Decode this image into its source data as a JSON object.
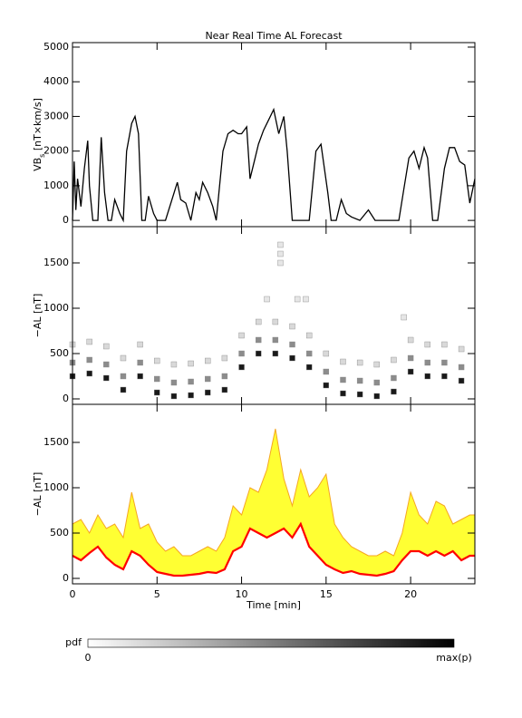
{
  "title": "Near Real Time AL Forecast",
  "chart_data": [
    {
      "type": "line",
      "ylabel": [
        "VB",
        "s",
        " [nT×km/s]"
      ],
      "x": [
        0,
        0.1,
        0.2,
        0.3,
        0.5,
        0.7,
        0.9,
        1.0,
        1.2,
        1.5,
        1.7,
        1.9,
        2.1,
        2.3,
        2.5,
        2.8,
        3.0,
        3.2,
        3.5,
        3.7,
        3.9,
        4.1,
        4.3,
        4.5,
        4.8,
        5.0,
        5.5,
        6.2,
        6.4,
        6.7,
        7.0,
        7.3,
        7.5,
        7.7,
        8.0,
        8.3,
        8.5,
        8.9,
        9.2,
        9.5,
        9.8,
        10.0,
        10.3,
        10.5,
        10.8,
        11.0,
        11.3,
        11.6,
        11.9,
        12.2,
        12.5,
        12.7,
        13.0,
        13.5,
        14.0,
        14.4,
        14.7,
        15.1,
        15.3,
        15.6,
        15.9,
        16.2,
        16.5,
        17.0,
        17.5,
        17.9,
        18.5,
        19.3,
        19.6,
        19.9,
        20.2,
        20.5,
        20.8,
        21.0,
        21.3,
        21.6,
        22.0,
        22.3,
        22.6,
        22.9,
        23.2,
        23.5,
        23.8
      ],
      "values": [
        0,
        1700,
        300,
        1200,
        400,
        1500,
        2300,
        1000,
        0,
        0,
        2400,
        800,
        0,
        0,
        600,
        200,
        0,
        2000,
        2800,
        3000,
        2500,
        0,
        0,
        700,
        200,
        0,
        0,
        1100,
        600,
        500,
        0,
        800,
        600,
        1100,
        800,
        400,
        0,
        2000,
        2500,
        2600,
        2500,
        2500,
        2700,
        1200,
        1800,
        2200,
        2600,
        2900,
        3200,
        2500,
        3000,
        2000,
        0,
        0,
        0,
        2000,
        2200,
        800,
        0,
        0,
        600,
        200,
        100,
        0,
        300,
        0,
        0,
        0,
        900,
        1800,
        2000,
        1500,
        2100,
        1800,
        0,
        0,
        1500,
        2100,
        2100,
        1700,
        1600,
        500,
        1200
      ],
      "color": "#000000",
      "xlim": [
        0,
        23.8
      ],
      "xticks": [
        0,
        5,
        10,
        15,
        20
      ],
      "ylim": [
        -180,
        5130
      ],
      "yticks": [
        0,
        1000,
        2000,
        3000,
        4000,
        5000
      ]
    },
    {
      "type": "scatter",
      "ylabel": [
        "−AL [nT]"
      ],
      "x": [
        0,
        1,
        2,
        3,
        4,
        5,
        6,
        7,
        8,
        9,
        10,
        11,
        12,
        13,
        14,
        15,
        16,
        17,
        18,
        19,
        20,
        21,
        22,
        23,
        0,
        1,
        2,
        3,
        4,
        5,
        6,
        7,
        8,
        9,
        10,
        11,
        12,
        13,
        14,
        15,
        16,
        17,
        18,
        19,
        20,
        21,
        22,
        23,
        0,
        1,
        2,
        3,
        4,
        5,
        6,
        7,
        8,
        9,
        10,
        11,
        12,
        13,
        14,
        15,
        16,
        17,
        18,
        19,
        20,
        21,
        22,
        23,
        11.5,
        12.3,
        12.3,
        12.3,
        13.3,
        13.8,
        19.6
      ],
      "y": [
        250,
        280,
        230,
        100,
        250,
        70,
        30,
        40,
        70,
        100,
        350,
        500,
        500,
        450,
        350,
        150,
        60,
        50,
        30,
        80,
        300,
        250,
        250,
        200,
        400,
        430,
        380,
        250,
        400,
        220,
        180,
        190,
        220,
        250,
        500,
        650,
        650,
        600,
        500,
        300,
        210,
        200,
        180,
        230,
        450,
        400,
        400,
        350,
        600,
        630,
        580,
        450,
        600,
        420,
        380,
        390,
        420,
        450,
        700,
        850,
        850,
        800,
        700,
        500,
        410,
        400,
        380,
        430,
        650,
        600,
        600,
        550,
        1100,
        1700,
        1600,
        1500,
        1100,
        1100,
        900
      ],
      "pdf": [
        0.9,
        0.9,
        0.9,
        0.9,
        0.9,
        0.9,
        0.9,
        0.9,
        0.9,
        0.9,
        0.9,
        0.9,
        0.9,
        0.9,
        0.9,
        0.9,
        0.9,
        0.9,
        0.9,
        0.9,
        0.9,
        0.9,
        0.9,
        0.9,
        0.45,
        0.45,
        0.45,
        0.45,
        0.45,
        0.45,
        0.45,
        0.45,
        0.45,
        0.45,
        0.45,
        0.45,
        0.45,
        0.45,
        0.45,
        0.45,
        0.45,
        0.45,
        0.45,
        0.45,
        0.45,
        0.45,
        0.45,
        0.45,
        0.15,
        0.15,
        0.15,
        0.15,
        0.15,
        0.15,
        0.15,
        0.15,
        0.15,
        0.15,
        0.15,
        0.15,
        0.15,
        0.15,
        0.15,
        0.15,
        0.15,
        0.15,
        0.15,
        0.15,
        0.15,
        0.15,
        0.15,
        0.15,
        0.1,
        0.1,
        0.1,
        0.1,
        0.1,
        0.1,
        0.1
      ],
      "xlim": [
        0,
        23.8
      ],
      "xticks": [
        0,
        5,
        10,
        15,
        20
      ],
      "ylim": [
        -60,
        1900
      ],
      "yticks": [
        0,
        500,
        1000,
        1500
      ]
    },
    {
      "type": "band",
      "ylabel": [
        "−AL [nT]"
      ],
      "xlabel": "Time [min]",
      "x": [
        0,
        0.5,
        1,
        1.5,
        2,
        2.5,
        3,
        3.5,
        4,
        4.5,
        5,
        5.5,
        6,
        6.5,
        7,
        7.5,
        8,
        8.5,
        9,
        9.5,
        10,
        10.5,
        11,
        11.5,
        12,
        12.5,
        13,
        13.5,
        14,
        14.5,
        15,
        15.5,
        16,
        16.5,
        17,
        17.5,
        18,
        18.5,
        19,
        19.5,
        20,
        20.5,
        21,
        21.5,
        22,
        22.5,
        23,
        23.5,
        23.8
      ],
      "series": [
        {
          "color": "#ff0000",
          "values": [
            250,
            200,
            280,
            350,
            230,
            150,
            100,
            300,
            250,
            150,
            70,
            50,
            30,
            30,
            40,
            50,
            70,
            60,
            100,
            300,
            350,
            550,
            500,
            450,
            500,
            550,
            450,
            600,
            350,
            250,
            150,
            100,
            60,
            80,
            50,
            40,
            30,
            50,
            80,
            200,
            300,
            300,
            250,
            300,
            250,
            300,
            200,
            250,
            250
          ]
        },
        {
          "color": "#f5a623",
          "values": [
            600,
            650,
            500,
            700,
            550,
            600,
            450,
            950,
            550,
            600,
            400,
            300,
            350,
            250,
            250,
            300,
            350,
            300,
            450,
            800,
            700,
            1000,
            950,
            1200,
            1650,
            1100,
            800,
            1200,
            900,
            1000,
            1150,
            600,
            450,
            350,
            300,
            250,
            250,
            300,
            250,
            500,
            950,
            700,
            600,
            850,
            800,
            600,
            650,
            700,
            700
          ]
        }
      ],
      "fill": "#ffff33",
      "xlim": [
        0,
        23.8
      ],
      "xticks": [
        0,
        5,
        10,
        15,
        20
      ],
      "ylim": [
        -60,
        1920
      ],
      "yticks": [
        0,
        500,
        1000,
        1500
      ]
    }
  ],
  "colorbar": {
    "label": "pdf",
    "min_label": "0",
    "max_label": "max(p)"
  }
}
